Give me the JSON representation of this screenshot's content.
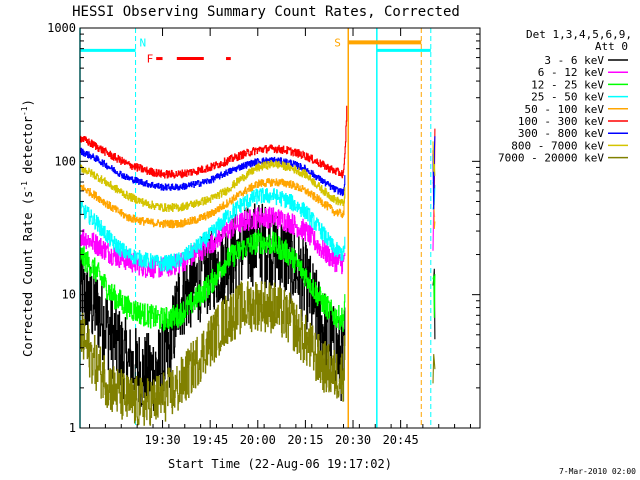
{
  "chart_data": {
    "type": "line",
    "title": "HESSI Observing Summary Count Rates, Corrected",
    "xlabel": "Start Time (22-Aug-06 19:17:02)",
    "ylabel_main": "Corrected Count Rate (s",
    "ylabel_sup1": "-1",
    "ylabel_mid": " detector",
    "ylabel_sup2": "-1",
    "ylabel_end": ")",
    "y_scale": "log",
    "ylim": [
      1,
      1000
    ],
    "xlim_min": [
      -13,
      113
    ],
    "x_ticks": [
      {
        "min": 13,
        "label": "19:30"
      },
      {
        "min": 28,
        "label": "19:45"
      },
      {
        "min": 43,
        "label": "20:00"
      },
      {
        "min": 58,
        "label": "20:15"
      },
      {
        "min": 73,
        "label": "20:30"
      },
      {
        "min": 88,
        "label": "20:45"
      }
    ],
    "y_ticks": [
      {
        "value": 1,
        "label": "1"
      },
      {
        "value": 10,
        "label": "10"
      },
      {
        "value": 100,
        "label": "100"
      },
      {
        "value": 1000,
        "label": "1000"
      }
    ],
    "legend_header": [
      "Det 1,3,4,5,6,9,",
      "Att 0"
    ],
    "footer_timestamp": "7-Mar-2010 02:00",
    "flag_labels": {
      "night": "N",
      "flare": "F",
      "saa": "S"
    },
    "series": [
      {
        "name": "3 - 6 keV",
        "color": "#000000",
        "noise": 0.32,
        "points": [
          [
            -13,
            10
          ],
          [
            -8,
            8
          ],
          [
            -3,
            5
          ],
          [
            2,
            3
          ],
          [
            8,
            2.5
          ],
          [
            13,
            3
          ],
          [
            15,
            3.5
          ],
          [
            18,
            9
          ],
          [
            23,
            12
          ],
          [
            28,
            15
          ],
          [
            33,
            18
          ],
          [
            38,
            22
          ],
          [
            43,
            25
          ],
          [
            48,
            22
          ],
          [
            53,
            18
          ],
          [
            58,
            12
          ],
          [
            63,
            6
          ],
          [
            67,
            4
          ],
          [
            70,
            3
          ],
          [
            70.5,
            5
          ]
        ]
      },
      {
        "name": "6 - 12 keV",
        "color": "#ff00ff",
        "noise": 0.08,
        "points": [
          [
            -13,
            28
          ],
          [
            -8,
            24
          ],
          [
            -3,
            20
          ],
          [
            2,
            18
          ],
          [
            8,
            16
          ],
          [
            13,
            16
          ],
          [
            18,
            17
          ],
          [
            23,
            20
          ],
          [
            28,
            24
          ],
          [
            33,
            30
          ],
          [
            38,
            35
          ],
          [
            43,
            38
          ],
          [
            48,
            38
          ],
          [
            53,
            35
          ],
          [
            58,
            30
          ],
          [
            63,
            22
          ],
          [
            67,
            18
          ],
          [
            70,
            17
          ],
          [
            70.5,
            22
          ]
        ]
      },
      {
        "name": "12 - 25 keV",
        "color": "#00ff00",
        "noise": 0.09,
        "points": [
          [
            -13,
            20
          ],
          [
            -8,
            15
          ],
          [
            -3,
            10
          ],
          [
            2,
            8
          ],
          [
            8,
            7
          ],
          [
            13,
            6.5
          ],
          [
            18,
            7
          ],
          [
            23,
            9
          ],
          [
            28,
            12
          ],
          [
            33,
            18
          ],
          [
            38,
            22
          ],
          [
            43,
            25
          ],
          [
            48,
            24
          ],
          [
            53,
            20
          ],
          [
            58,
            14
          ],
          [
            63,
            9
          ],
          [
            67,
            7
          ],
          [
            70,
            6.5
          ],
          [
            70.5,
            9
          ]
        ]
      },
      {
        "name": "25 - 50 keV",
        "color": "#00ffff",
        "noise": 0.06,
        "points": [
          [
            -13,
            45
          ],
          [
            -8,
            35
          ],
          [
            -3,
            25
          ],
          [
            2,
            20
          ],
          [
            8,
            18
          ],
          [
            13,
            17
          ],
          [
            18,
            18
          ],
          [
            23,
            22
          ],
          [
            28,
            28
          ],
          [
            33,
            38
          ],
          [
            38,
            48
          ],
          [
            43,
            55
          ],
          [
            48,
            55
          ],
          [
            53,
            50
          ],
          [
            58,
            42
          ],
          [
            63,
            30
          ],
          [
            67,
            22
          ],
          [
            70,
            20
          ],
          [
            70.5,
            28
          ]
        ]
      },
      {
        "name": "50 - 100 keV",
        "color": "#ffa500",
        "noise": 0.03,
        "points": [
          [
            -13,
            65
          ],
          [
            -8,
            55
          ],
          [
            -3,
            45
          ],
          [
            2,
            38
          ],
          [
            8,
            35
          ],
          [
            13,
            34
          ],
          [
            18,
            34
          ],
          [
            23,
            36
          ],
          [
            28,
            40
          ],
          [
            33,
            48
          ],
          [
            38,
            58
          ],
          [
            43,
            68
          ],
          [
            48,
            70
          ],
          [
            53,
            68
          ],
          [
            58,
            60
          ],
          [
            63,
            50
          ],
          [
            67,
            42
          ],
          [
            70,
            40
          ],
          [
            70.5,
            60
          ]
        ]
      },
      {
        "name": "100 - 300 keV",
        "color": "#ff0000",
        "noise": 0.03,
        "points": [
          [
            -13,
            150
          ],
          [
            -8,
            130
          ],
          [
            -3,
            110
          ],
          [
            2,
            95
          ],
          [
            8,
            85
          ],
          [
            13,
            80
          ],
          [
            18,
            80
          ],
          [
            23,
            84
          ],
          [
            28,
            90
          ],
          [
            33,
            100
          ],
          [
            38,
            112
          ],
          [
            43,
            122
          ],
          [
            48,
            125
          ],
          [
            53,
            120
          ],
          [
            58,
            110
          ],
          [
            63,
            95
          ],
          [
            67,
            85
          ],
          [
            70,
            80
          ],
          [
            70.5,
            120
          ],
          [
            71,
            250
          ]
        ]
      },
      {
        "name": "300 - 800 keV",
        "color": "#0000ff",
        "noise": 0.025,
        "points": [
          [
            -13,
            120
          ],
          [
            -8,
            105
          ],
          [
            -3,
            88
          ],
          [
            2,
            75
          ],
          [
            8,
            68
          ],
          [
            13,
            64
          ],
          [
            18,
            64
          ],
          [
            23,
            67
          ],
          [
            28,
            72
          ],
          [
            33,
            82
          ],
          [
            38,
            92
          ],
          [
            43,
            100
          ],
          [
            48,
            102
          ],
          [
            53,
            98
          ],
          [
            58,
            88
          ],
          [
            63,
            72
          ],
          [
            67,
            62
          ],
          [
            70,
            58
          ],
          [
            70.5,
            80
          ]
        ]
      },
      {
        "name": "800 - 7000 keV",
        "color": "#d4c400",
        "noise": 0.03,
        "points": [
          [
            -13,
            90
          ],
          [
            -8,
            78
          ],
          [
            -3,
            65
          ],
          [
            2,
            55
          ],
          [
            8,
            48
          ],
          [
            13,
            45
          ],
          [
            18,
            45
          ],
          [
            23,
            48
          ],
          [
            28,
            52
          ],
          [
            33,
            60
          ],
          [
            38,
            75
          ],
          [
            43,
            90
          ],
          [
            48,
            96
          ],
          [
            53,
            90
          ],
          [
            58,
            80
          ],
          [
            63,
            62
          ],
          [
            67,
            52
          ],
          [
            70,
            48
          ],
          [
            70.5,
            65
          ]
        ]
      },
      {
        "name": "7000 - 20000 keV",
        "color": "#808000",
        "noise": 0.2,
        "points": [
          [
            -13,
            5
          ],
          [
            -8,
            3
          ],
          [
            -3,
            2
          ],
          [
            2,
            1.6
          ],
          [
            8,
            1.5
          ],
          [
            13,
            1.7
          ],
          [
            18,
            2
          ],
          [
            23,
            3
          ],
          [
            28,
            4.5
          ],
          [
            33,
            6.5
          ],
          [
            38,
            8
          ],
          [
            43,
            8.5
          ],
          [
            48,
            8
          ],
          [
            53,
            6.5
          ],
          [
            58,
            4.5
          ],
          [
            63,
            3
          ],
          [
            67,
            2.5
          ],
          [
            70,
            2.5
          ],
          [
            70.5,
            4
          ]
        ]
      }
    ],
    "markers": [
      {
        "type": "solid",
        "color": "#00ffff",
        "x_min": -13
      },
      {
        "type": "dashed",
        "color": "#00ffff",
        "x_min": 4.5
      },
      {
        "type": "solid",
        "color": "#ffa500",
        "x_min": 71.5
      },
      {
        "type": "solid",
        "color": "#00ffff",
        "x_min": 80.5
      },
      {
        "type": "dashed",
        "color": "#ffa500",
        "x_min": 94.5
      },
      {
        "type": "dashed",
        "color": "#00ffff",
        "x_min": 97.5
      }
    ],
    "night_bars": [
      [
        -13,
        4.5
      ],
      [
        80.5,
        97.5
      ]
    ],
    "saa_bars": [
      [
        71.5,
        94.5
      ]
    ],
    "flare_bars": [
      [
        11,
        13
      ],
      [
        17.5,
        26
      ],
      [
        33,
        34.5
      ]
    ],
    "flag_level": 680,
    "flare_level": 590
  }
}
